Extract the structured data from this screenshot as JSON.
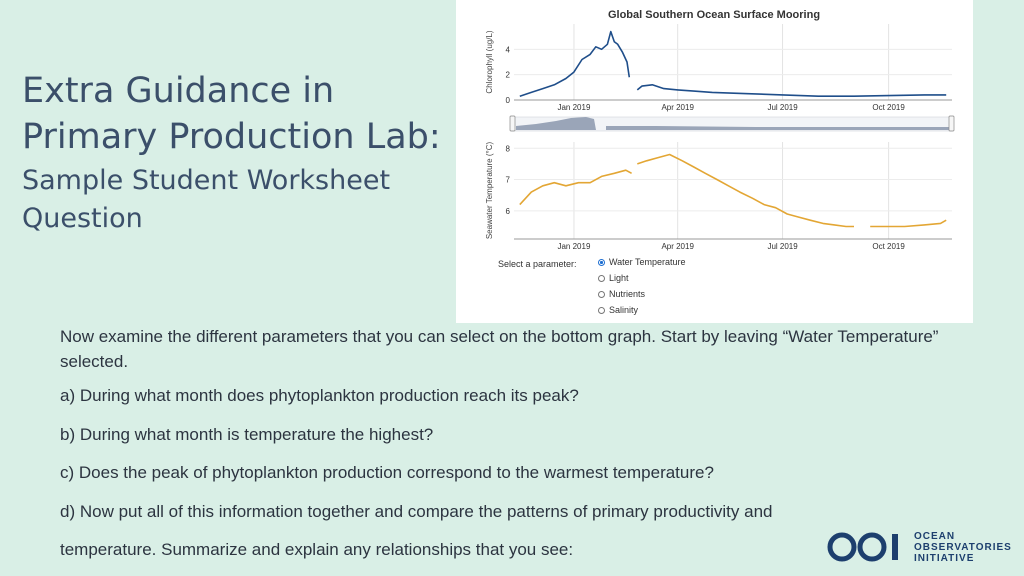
{
  "slide": {
    "title_line1": "Extra Guidance in",
    "title_line2": "Primary Production Lab:",
    "subtitle_line1": "Sample Student Worksheet",
    "subtitle_line2": "Question"
  },
  "chart_panel": {
    "title": "Global Southern Ocean Surface Mooring",
    "select_label": "Select a parameter:",
    "options": [
      "Water Temperature",
      "Light",
      "Nutrients",
      "Salinity"
    ],
    "selected": "Water Temperature"
  },
  "chart_data": [
    {
      "type": "line",
      "title": "Global Southern Ocean Surface Mooring",
      "ylabel": "Chlorophyll (ug/L)",
      "xlabel": "",
      "x_ticks": [
        "Jan 2019",
        "Apr 2019",
        "Jul 2019",
        "Oct 2019"
      ],
      "y_ticks": [
        0,
        2,
        4
      ],
      "ylim": [
        0,
        6
      ],
      "color": "#1f4e8a",
      "series": [
        {
          "x": [
            "2018-11-15",
            "2018-11-25",
            "2018-12-05",
            "2018-12-15",
            "2018-12-25",
            "2019-01-01",
            "2019-01-08",
            "2019-01-15",
            "2019-01-20",
            "2019-01-25",
            "2019-01-30",
            "2019-02-02",
            "2019-02-05",
            "2019-02-08",
            "2019-02-12",
            "2019-02-16",
            "2019-02-18"
          ],
          "y": [
            0.3,
            0.6,
            0.9,
            1.2,
            1.7,
            2.2,
            3.2,
            3.6,
            4.2,
            4.0,
            4.4,
            5.4,
            4.6,
            4.4,
            3.8,
            3.0,
            1.8
          ]
        },
        {
          "x": [
            "2019-02-25",
            "2019-03-01",
            "2019-03-10",
            "2019-03-20",
            "2019-04-01",
            "2019-04-15",
            "2019-05-01",
            "2019-06-01",
            "2019-07-01",
            "2019-08-01",
            "2019-09-01",
            "2019-10-01",
            "2019-11-01",
            "2019-11-20"
          ],
          "y": [
            0.8,
            1.1,
            1.2,
            0.9,
            0.8,
            0.7,
            0.6,
            0.5,
            0.4,
            0.3,
            0.3,
            0.35,
            0.4,
            0.4
          ]
        }
      ]
    },
    {
      "type": "line",
      "ylabel": "Seawater Temperature (°C)",
      "xlabel": "",
      "x_ticks": [
        "Jan 2019",
        "Apr 2019",
        "Jul 2019",
        "Oct 2019"
      ],
      "y_ticks": [
        6,
        7,
        8
      ],
      "ylim": [
        5.1,
        8.2
      ],
      "color": "#e3a634",
      "series": [
        {
          "x": [
            "2018-11-15",
            "2018-11-25",
            "2018-12-05",
            "2018-12-15",
            "2018-12-25",
            "2019-01-05",
            "2019-01-15",
            "2019-01-25",
            "2019-02-05",
            "2019-02-15",
            "2019-02-20"
          ],
          "y": [
            6.2,
            6.6,
            6.8,
            6.9,
            6.8,
            6.9,
            6.9,
            7.1,
            7.2,
            7.3,
            7.2
          ]
        },
        {
          "x": [
            "2019-02-25",
            "2019-03-05",
            "2019-03-15",
            "2019-03-25",
            "2019-04-05",
            "2019-04-15",
            "2019-04-25",
            "2019-05-05",
            "2019-05-15",
            "2019-05-25",
            "2019-06-05",
            "2019-06-15",
            "2019-06-25",
            "2019-07-05",
            "2019-07-15",
            "2019-07-25",
            "2019-08-05",
            "2019-08-15",
            "2019-08-25",
            "2019-09-01"
          ],
          "y": [
            7.5,
            7.6,
            7.7,
            7.8,
            7.6,
            7.4,
            7.2,
            7.0,
            6.8,
            6.6,
            6.4,
            6.2,
            6.1,
            5.9,
            5.8,
            5.7,
            5.6,
            5.55,
            5.5,
            5.5
          ]
        },
        {
          "x": [
            "2019-09-15",
            "2019-10-01",
            "2019-10-15",
            "2019-11-01",
            "2019-11-15",
            "2019-11-20"
          ],
          "y": [
            5.5,
            5.5,
            5.5,
            5.55,
            5.6,
            5.7
          ]
        }
      ]
    }
  ],
  "worksheet": {
    "intro": "Now examine the different parameters that you can select on the bottom graph. Start by leaving “Water Temperature” selected.",
    "q_a": "a)  During what month does phytoplankton production reach its peak?",
    "q_b": "b)  During what month is temperature the highest?",
    "q_c": "c)   Does the peak of phytoplankton production correspond to the warmest temperature?",
    "q_d": "d)   Now put all of this information together and compare the patterns of primary productivity and",
    "q_d_cont": "temperature. Summarize and explain any relationships that you see:"
  },
  "logo": {
    "line1": "OCEAN",
    "line2": "OBSERVATORIES",
    "line3": "INITIATIVE",
    "color": "#1d3f6e"
  }
}
